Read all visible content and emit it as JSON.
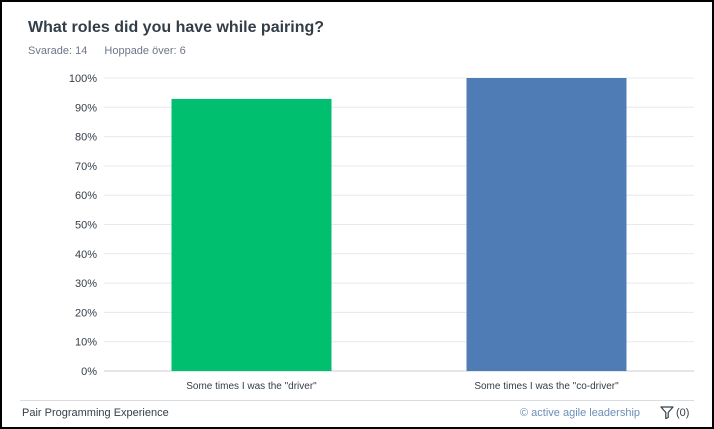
{
  "question": {
    "title": "What roles did you have while pairing?",
    "answered_text": "Svarade: 14",
    "skipped_text": "Hoppade över: 6"
  },
  "footer": {
    "survey_name": "Pair Programming Experience",
    "credit": "© active agile leadership",
    "filter_count": "(0)"
  },
  "icons": {
    "filter": "filter-icon"
  },
  "colors": {
    "bar_driver": "#00bf6f",
    "bar_codriver": "#507cb6"
  },
  "chart_data": {
    "type": "bar",
    "categories": [
      "Some times I was the \"driver\"",
      "Some times I was the \"co-driver\""
    ],
    "values": [
      92.86,
      100
    ],
    "colors": [
      "#00bf6f",
      "#507cb6"
    ],
    "ylim": [
      0,
      100
    ],
    "yticks": [
      "0%",
      "10%",
      "20%",
      "30%",
      "40%",
      "50%",
      "60%",
      "70%",
      "80%",
      "90%",
      "100%"
    ],
    "grid": true
  }
}
